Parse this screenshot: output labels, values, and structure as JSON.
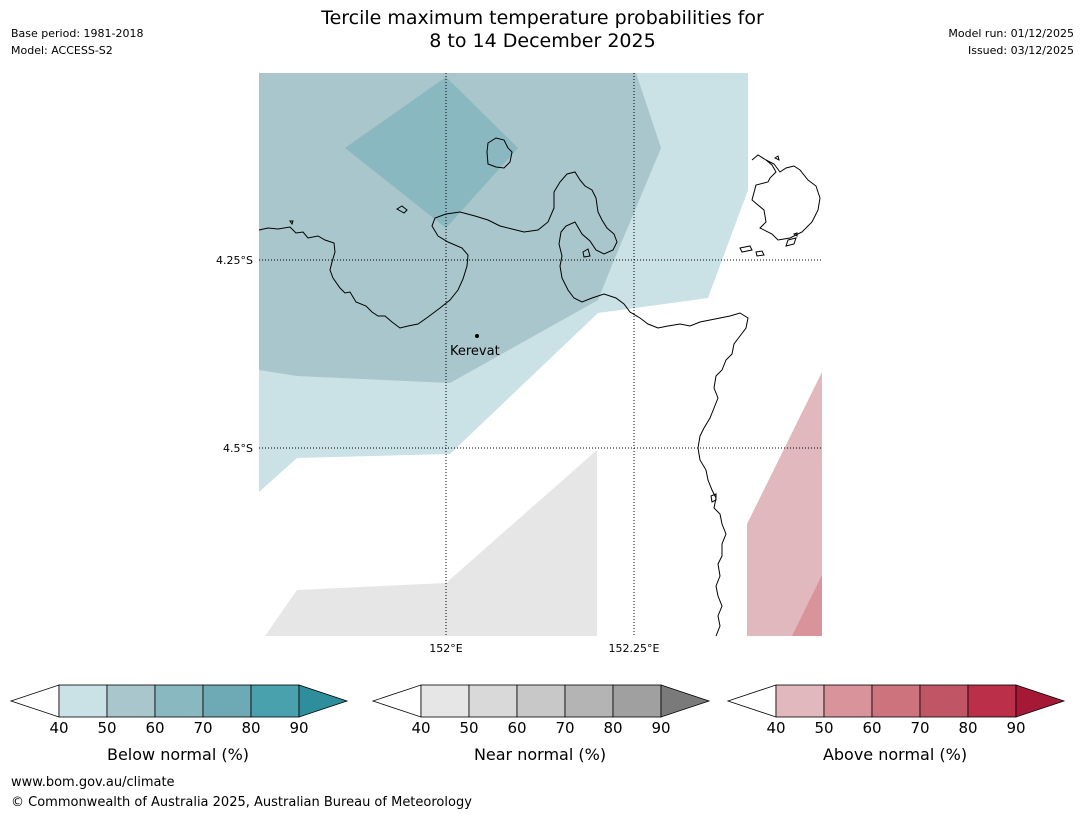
{
  "header": {
    "title_line1": "Tercile maximum temperature probabilities for",
    "title_line2": "8 to 14 December 2025",
    "base_period": "Base period: 1981-2018",
    "model": "Model: ACCESS-S2",
    "model_run": "Model run: 01/12/2025",
    "issued": "Issued: 03/12/2025"
  },
  "map": {
    "lat_labels": [
      "4.25°S",
      "4.5°S"
    ],
    "lon_labels": [
      "152°E",
      "152.25°E"
    ],
    "place": "Kerevat"
  },
  "colorbars": [
    {
      "label": "Below normal (%)",
      "ticks": [
        "40",
        "50",
        "60",
        "70",
        "80",
        "90"
      ],
      "colors": [
        "#ffffff",
        "#cae1e6",
        "#a8c6cb",
        "#8ab8c0",
        "#6eaab5",
        "#4aa1ae",
        "#2f8e9c"
      ]
    },
    {
      "label": "Near normal (%)",
      "ticks": [
        "40",
        "50",
        "60",
        "70",
        "80",
        "90"
      ],
      "colors": [
        "#ffffff",
        "#e6e6e6",
        "#d9d9d9",
        "#c8c8c8",
        "#b4b4b4",
        "#a0a0a0",
        "#7a7a7a"
      ]
    },
    {
      "label": "Above normal (%)",
      "ticks": [
        "40",
        "50",
        "60",
        "70",
        "80",
        "90"
      ],
      "colors": [
        "#ffffff",
        "#e1b8bd",
        "#d8939b",
        "#cc737e",
        "#c05566",
        "#bb2f48",
        "#a51937"
      ]
    }
  ],
  "footer": {
    "website": "www.bom.gov.au/climate",
    "copyright": "© Commonwealth of Australia 2025, Australian Bureau of Meteorology"
  }
}
